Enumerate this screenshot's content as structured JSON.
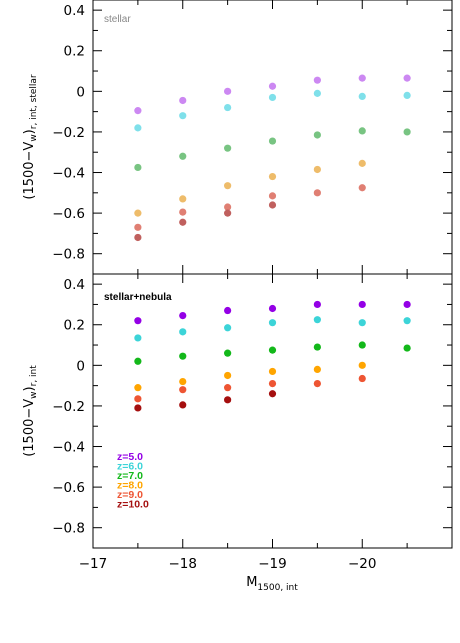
{
  "chart_data": [
    {
      "type": "scatter",
      "panel_label": "stellar",
      "ylabel": {
        "main": "(1500−V",
        "sub1": "w",
        "mid": ")",
        "sub2": "r, int, stellar"
      },
      "ylim": [
        -0.9,
        0.45
      ],
      "xlim": [
        -17,
        -21
      ],
      "y_ticks": [
        0.4,
        0.2,
        0,
        -0.2,
        -0.4,
        -0.6,
        -0.8
      ],
      "y_tick_labels": [
        "0.4",
        "0.2",
        "0",
        "−0.2",
        "−0.4",
        "−0.6",
        "−0.8"
      ],
      "grid": false,
      "series": [
        {
          "color": "#cc88f2",
          "x": [
            -17.5,
            -18,
            -18.5,
            -19,
            -19.5,
            -20,
            -20.5
          ],
          "y": [
            -0.095,
            -0.045,
            0.0,
            0.025,
            0.055,
            0.065,
            0.065
          ]
        },
        {
          "color": "#7fe0ea",
          "x": [
            -17.5,
            -18,
            -18.5,
            -19,
            -19.5,
            -20,
            -20.5
          ],
          "y": [
            -0.18,
            -0.12,
            -0.08,
            -0.03,
            -0.01,
            -0.025,
            -0.02
          ]
        },
        {
          "color": "#78c482",
          "x": [
            -17.5,
            -18,
            -18.5,
            -19,
            -19.5,
            -20,
            -20.5
          ],
          "y": [
            -0.375,
            -0.32,
            -0.28,
            -0.245,
            -0.215,
            -0.195,
            -0.2
          ]
        },
        {
          "color": "#eebc6a",
          "x": [
            -17.5,
            -18,
            -18.5,
            -19,
            -19.5,
            -20
          ],
          "y": [
            -0.6,
            -0.53,
            -0.465,
            -0.42,
            -0.385,
            -0.355
          ]
        },
        {
          "color": "#e07f73",
          "x": [
            -17.5,
            -18,
            -18.5,
            -19,
            -19.5,
            -20
          ],
          "y": [
            -0.67,
            -0.595,
            -0.57,
            -0.515,
            -0.5,
            -0.475
          ]
        },
        {
          "color": "#c0605e",
          "x": [
            -17.5,
            -18,
            -18.5,
            -19
          ],
          "y": [
            -0.72,
            -0.645,
            -0.6,
            -0.56
          ]
        }
      ]
    },
    {
      "type": "scatter",
      "panel_label": "stellar+nebula",
      "ylabel": {
        "main": "(1500−V",
        "sub1": "w",
        "mid": ")",
        "sub2": "r, int"
      },
      "xlabel": {
        "main": "M",
        "sub": "1500, int"
      },
      "ylim": [
        -0.9,
        0.45
      ],
      "xlim": [
        -17,
        -21
      ],
      "x_ticks": [
        -17,
        -18,
        -19,
        -20
      ],
      "x_tick_labels": [
        "−17",
        "−18",
        "−19",
        "−20"
      ],
      "y_ticks": [
        0.4,
        0.2,
        0,
        -0.2,
        -0.4,
        -0.6,
        -0.8
      ],
      "y_tick_labels": [
        "0.4",
        "0.2",
        "0",
        "−0.2",
        "−0.4",
        "−0.6",
        "−0.8"
      ],
      "grid": false,
      "series": [
        {
          "name": "z=5.0",
          "color": "#9400e6",
          "x": [
            -17.5,
            -18,
            -18.5,
            -19,
            -19.5,
            -20,
            -20.5
          ],
          "y": [
            0.22,
            0.245,
            0.27,
            0.28,
            0.3,
            0.3,
            0.3
          ]
        },
        {
          "name": "z=6.0",
          "color": "#3cd4d8",
          "x": [
            -17.5,
            -18,
            -18.5,
            -19,
            -19.5,
            -20,
            -20.5
          ],
          "y": [
            0.135,
            0.165,
            0.185,
            0.21,
            0.225,
            0.21,
            0.22
          ]
        },
        {
          "name": "z=7.0",
          "color": "#13b81a",
          "x": [
            -17.5,
            -18,
            -18.5,
            -19,
            -19.5,
            -20,
            -20.5
          ],
          "y": [
            0.02,
            0.045,
            0.06,
            0.075,
            0.09,
            0.1,
            0.085
          ]
        },
        {
          "name": "z=8.0",
          "color": "#ffa500",
          "x": [
            -17.5,
            -18,
            -18.5,
            -19,
            -19.5,
            -20
          ],
          "y": [
            -0.11,
            -0.08,
            -0.05,
            -0.03,
            -0.02,
            0.0
          ]
        },
        {
          "name": "z=9.0",
          "color": "#ee5533",
          "x": [
            -17.5,
            -18,
            -18.5,
            -19,
            -19.5,
            -20
          ],
          "y": [
            -0.165,
            -0.12,
            -0.11,
            -0.09,
            -0.09,
            -0.065
          ]
        },
        {
          "name": "z=10.0",
          "color": "#a50f0f",
          "x": [
            -17.5,
            -18,
            -18.5,
            -19
          ],
          "y": [
            -0.21,
            -0.195,
            -0.17,
            -0.14
          ]
        }
      ],
      "legend": [
        "z=5.0",
        "z=6.0",
        "z=7.0",
        "z=8.0",
        "z=9.0",
        "z=10.0"
      ],
      "legend_position": "bottom-left"
    }
  ]
}
